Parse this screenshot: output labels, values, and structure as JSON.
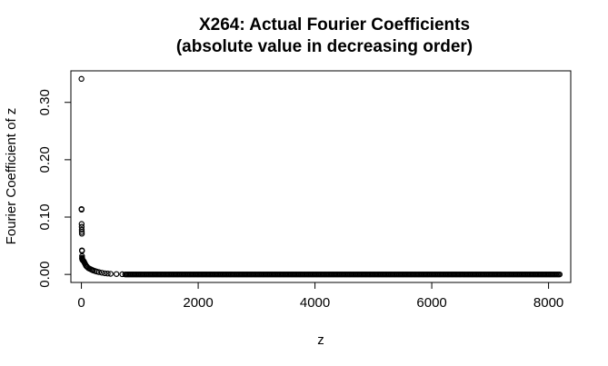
{
  "chart_data": {
    "type": "scatter",
    "title_line1": "X264: Actual Fourier Coefficients",
    "title_line2": "(absolute value in decreasing order)",
    "xlabel": "z",
    "ylabel": "Fourier Coefficient of z",
    "xlim": [
      -180,
      8380
    ],
    "ylim": [
      -0.014,
      0.355
    ],
    "xticks": [
      0,
      2000,
      4000,
      6000,
      8000
    ],
    "yticks": [
      0.0,
      0.1,
      0.2,
      0.3
    ],
    "xtick_labels": [
      "0",
      "2000",
      "4000",
      "6000",
      "8000"
    ],
    "ytick_labels": [
      "0.00",
      "0.10",
      "0.20",
      "0.30"
    ],
    "grid": false,
    "point_style": "open-circle",
    "points": [
      [
        1,
        0.341
      ],
      [
        2,
        0.114
      ],
      [
        3,
        0.113
      ],
      [
        4,
        0.088
      ],
      [
        5,
        0.083
      ],
      [
        6,
        0.078
      ],
      [
        7,
        0.074
      ],
      [
        8,
        0.071
      ],
      [
        9,
        0.042
      ],
      [
        10,
        0.041
      ],
      [
        11,
        0.032
      ],
      [
        12,
        0.029
      ],
      [
        13,
        0.028
      ],
      [
        14,
        0.027
      ],
      [
        15,
        0.026
      ],
      [
        20,
        0.025
      ],
      [
        30,
        0.024
      ],
      [
        40,
        0.023
      ],
      [
        50,
        0.021
      ],
      [
        60,
        0.019
      ],
      [
        70,
        0.017
      ],
      [
        80,
        0.015
      ],
      [
        90,
        0.014
      ],
      [
        100,
        0.013
      ],
      [
        120,
        0.011
      ],
      [
        140,
        0.01
      ],
      [
        160,
        0.009
      ],
      [
        180,
        0.008
      ],
      [
        200,
        0.007
      ],
      [
        230,
        0.006
      ],
      [
        260,
        0.005
      ],
      [
        300,
        0.004
      ],
      [
        350,
        0.003
      ],
      [
        400,
        0.002
      ],
      [
        450,
        0.0015
      ],
      [
        500,
        0.001
      ],
      [
        600,
        0.0006
      ],
      [
        700,
        0.0003
      ]
    ],
    "tail": {
      "x_start": 750,
      "x_end": 8192,
      "step": 20,
      "value": 0.0
    }
  }
}
